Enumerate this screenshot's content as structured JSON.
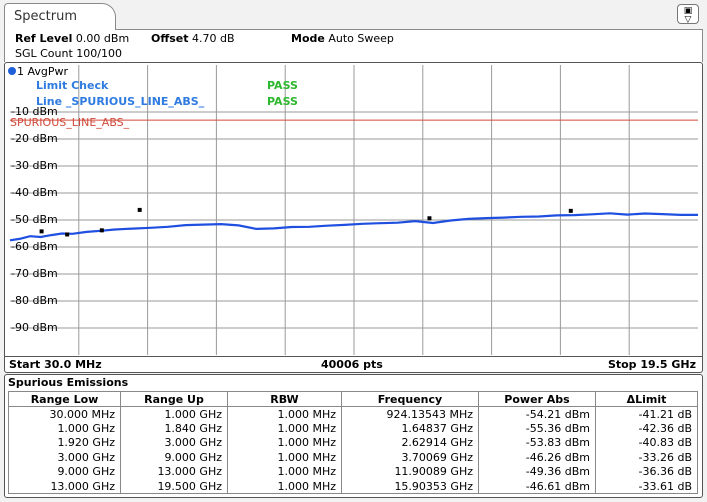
{
  "tab": {
    "label": "Spectrum"
  },
  "header": {
    "ref_level_label": "Ref Level",
    "ref_level_value": "0.00 dBm",
    "offset_label": "Offset",
    "offset_value": "4.70 dB",
    "mode_label": "Mode",
    "mode_value": "Auto Sweep",
    "sgl_count": "SGL Count 100/100"
  },
  "trace": {
    "label": "1 AvgPwr",
    "color": "#1f4fe0"
  },
  "limit_check": {
    "title": "Limit Check",
    "title_result": "PASS",
    "line_label": "Line _SPURIOUS_LINE_ABS_",
    "line_result": "PASS",
    "line_name": "SPURIOUS_LINE_ABS_",
    "pass_color": "#2db82d",
    "label_color": "#2f7be0",
    "limit_color": "#d04a3a"
  },
  "chart_data": {
    "type": "line",
    "title": "",
    "xlabel": "",
    "ylabel": "",
    "x_unit": "GHz",
    "xlim": [
      0.03,
      19.5
    ],
    "ylim": [
      -100,
      0
    ],
    "y_ticks": [
      {
        "value": -10,
        "label": "-10 dBm"
      },
      {
        "value": -20,
        "label": "-20 dBm"
      },
      {
        "value": -30,
        "label": "-30 dBm"
      },
      {
        "value": -40,
        "label": "-40 dBm"
      },
      {
        "value": -50,
        "label": "-50 dBm"
      },
      {
        "value": -60,
        "label": "-60 dBm"
      },
      {
        "value": -70,
        "label": "-70 dBm"
      },
      {
        "value": -80,
        "label": "-80 dBm"
      },
      {
        "value": -90,
        "label": "-90 dBm"
      }
    ],
    "grid": true,
    "limit_line_value": -13,
    "series": [
      {
        "x": [
          0.03,
          0.3,
          0.6,
          0.9,
          1.2,
          1.5,
          1.8,
          2.2,
          2.6,
          3.0,
          3.5,
          4.0,
          4.5,
          5.0,
          5.5,
          6.0,
          6.5,
          7.0,
          7.5,
          8.0,
          8.5,
          9.0,
          9.5,
          10.0,
          10.5,
          11.0,
          11.5,
          12.0,
          12.5,
          13.0,
          13.5,
          14.0,
          14.5,
          15.0,
          15.5,
          16.0,
          16.5,
          17.0,
          17.5,
          18.0,
          18.5,
          19.0,
          19.5
        ],
        "y": [
          -57.5,
          -57.0,
          -56.0,
          -56.3,
          -55.6,
          -55.0,
          -55.1,
          -54.4,
          -54.0,
          -53.5,
          -53.2,
          -52.9,
          -52.5,
          -51.9,
          -51.7,
          -51.5,
          -52.0,
          -53.3,
          -53.1,
          -52.6,
          -52.5,
          -52.1,
          -51.8,
          -51.4,
          -51.2,
          -51.0,
          -50.4,
          -51.1,
          -50.2,
          -49.6,
          -49.3,
          -49.1,
          -48.8,
          -48.7,
          -48.3,
          -48.2,
          -47.9,
          -47.5,
          -48.0,
          -47.6,
          -47.8,
          -48.1,
          -48.1
        ]
      }
    ],
    "markers": [
      {
        "x": 0.924,
        "y": -54.21
      },
      {
        "x": 1.648,
        "y": -55.36
      },
      {
        "x": 2.629,
        "y": -53.83
      },
      {
        "x": 3.7,
        "y": -46.26
      },
      {
        "x": 11.9,
        "y": -49.36
      },
      {
        "x": 15.9,
        "y": -46.61
      }
    ],
    "start_label": "Start 30.0 MHz",
    "points_label": "40006 pts",
    "stop_label": "Stop 19.5 GHz"
  },
  "spurious": {
    "title": "Spurious Emissions",
    "columns": [
      "Range Low",
      "Range Up",
      "RBW",
      "Frequency",
      "Power Abs",
      "ΔLimit"
    ],
    "rows": [
      [
        "30.000 MHz",
        "1.000 GHz",
        "1.000 MHz",
        "924.13543 MHz",
        "-54.21 dBm",
        "-41.21 dB"
      ],
      [
        "1.000 GHz",
        "1.840 GHz",
        "1.000 MHz",
        "1.64837 GHz",
        "-55.36 dBm",
        "-42.36 dB"
      ],
      [
        "1.920 GHz",
        "3.000 GHz",
        "1.000 MHz",
        "2.62914 GHz",
        "-53.83 dBm",
        "-40.83 dB"
      ],
      [
        "3.000 GHz",
        "9.000 GHz",
        "1.000 MHz",
        "3.70069 GHz",
        "-46.26 dBm",
        "-33.26 dB"
      ],
      [
        "9.000 GHz",
        "13.000 GHz",
        "1.000 MHz",
        "11.90089 GHz",
        "-49.36 dBm",
        "-36.36 dB"
      ],
      [
        "13.000 GHz",
        "19.500 GHz",
        "1.000 MHz",
        "15.90353 GHz",
        "-46.61 dBm",
        "-33.61 dB"
      ]
    ]
  }
}
